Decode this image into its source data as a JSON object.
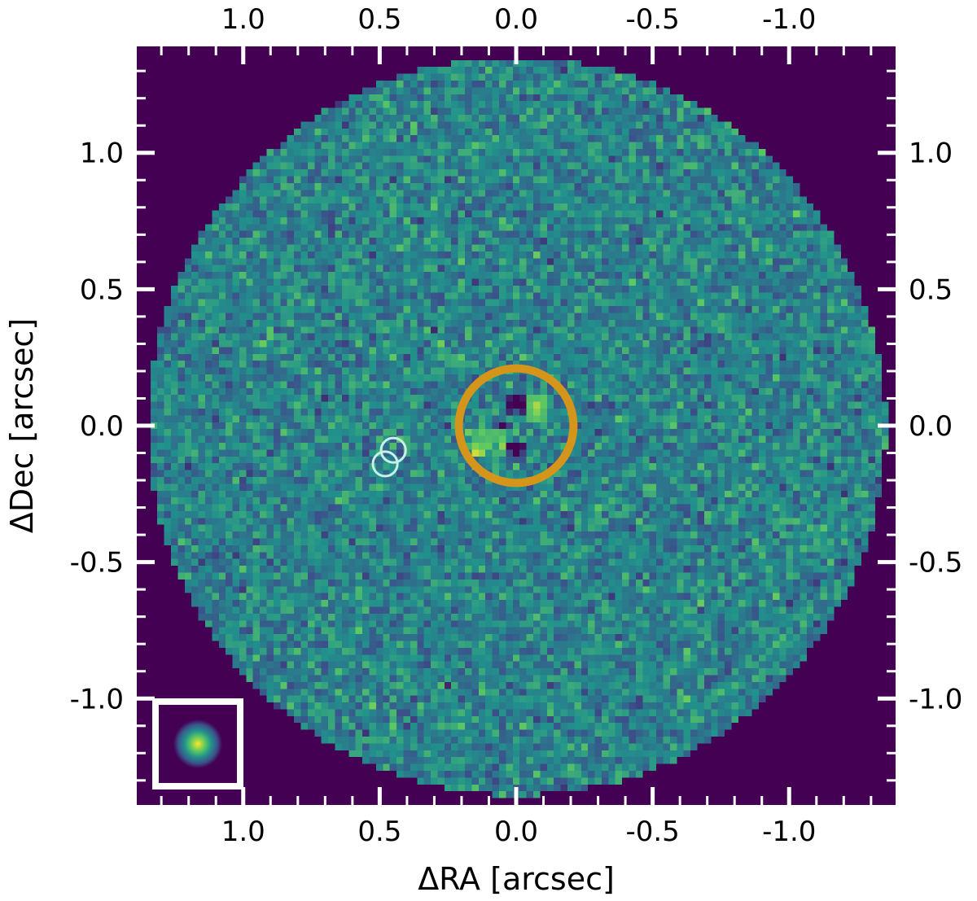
{
  "chart_data": {
    "type": "heatmap",
    "description_of_axes": "sky image",
    "xlabel": "ΔRA [arcsec]",
    "ylabel": "ΔDec [arcsec]",
    "xlim": [
      1.39,
      -1.39
    ],
    "ylim": [
      -1.39,
      1.39
    ],
    "x_ticks": [
      1.0,
      0.5,
      0.0,
      -0.5,
      -1.0
    ],
    "x_tick_labels": [
      "1.0",
      "0.5",
      "0.0",
      "-0.5",
      "-1.0"
    ],
    "y_ticks": [
      1.0,
      0.5,
      0.0,
      -0.5,
      -1.0
    ],
    "y_tick_labels": [
      "1.0",
      "0.5",
      "0.0",
      "-0.5",
      "-1.0"
    ],
    "x_minor_step": 0.1,
    "y_minor_step": 0.1,
    "field_of_view_radius": 1.35,
    "pixel_scale": 0.025,
    "colormap": [
      "#440154",
      "#3b528b",
      "#21918c",
      "#5ec962",
      "#fde725"
    ],
    "background_color": "#440154",
    "markers": [
      {
        "name": "target",
        "ra": 0.0,
        "dec": 0.0,
        "radius": 0.21,
        "color": "#d4951a"
      },
      {
        "name": "source-a",
        "ra": 0.45,
        "dec": -0.09,
        "radius": 0.045,
        "color": "#c8f0e8"
      },
      {
        "name": "source-b",
        "ra": 0.48,
        "dec": -0.14,
        "radius": 0.045,
        "color": "#c8f0e8"
      }
    ],
    "psf_inset": {
      "location": "lower-left",
      "frame_color": "#ffffff"
    }
  }
}
